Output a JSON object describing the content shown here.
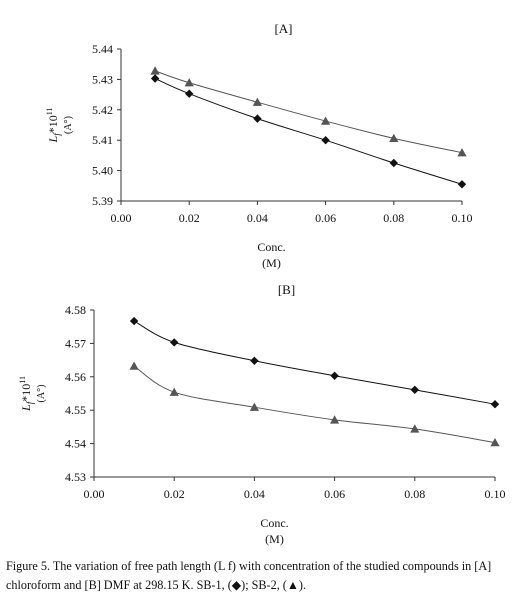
{
  "chart_data": [
    {
      "type": "line",
      "title": "[A]",
      "xlabel_line1": "Conc.",
      "xlabel_line2": "(M)",
      "ylabel_main": "L",
      "ylabel_sub": "f",
      "ylabel_rest": "*10",
      "ylabel_exp": "11",
      "ylabel_unit": "(A°)",
      "xlim": [
        0,
        0.1
      ],
      "ylim": [
        5.39,
        5.44
      ],
      "x_ticks": [
        0,
        0.02,
        0.04,
        0.06,
        0.08,
        0.1
      ],
      "x_tick_labels": [
        "0.00",
        "0.02",
        "0.04",
        "0.06",
        "0.08",
        "0.10"
      ],
      "y_ticks": [
        5.39,
        5.4,
        5.41,
        5.42,
        5.43,
        5.44
      ],
      "y_tick_labels": [
        "5.39",
        "5.40",
        "5.41",
        "5.42",
        "5.43",
        "5.44"
      ],
      "grid": false,
      "series": [
        {
          "marker": "diamond",
          "color": "#111111",
          "x": [
            0.01,
            0.02,
            0.04,
            0.06,
            0.08,
            0.1
          ],
          "y": [
            5.4303,
            5.4253,
            5.4171,
            5.41,
            5.4025,
            5.3955
          ]
        },
        {
          "marker": "triangle",
          "color": "#555555",
          "x": [
            0.01,
            0.02,
            0.04,
            0.06,
            0.08,
            0.1
          ],
          "y": [
            5.4328,
            5.4289,
            5.4225,
            5.4163,
            5.4106,
            5.4059
          ]
        }
      ]
    },
    {
      "type": "line",
      "title": "[B]",
      "xlabel_line1": "Conc.",
      "xlabel_line2": "(M)",
      "ylabel_main": "L",
      "ylabel_sub": "f",
      "ylabel_rest": "*10",
      "ylabel_exp": "11",
      "ylabel_unit": "(A°)",
      "xlim": [
        0,
        0.1
      ],
      "ylim": [
        4.53,
        4.58
      ],
      "x_ticks": [
        0,
        0.02,
        0.04,
        0.06,
        0.08,
        0.1
      ],
      "x_tick_labels": [
        "0.00",
        "0.02",
        "0.04",
        "0.06",
        "0.08",
        "0.10"
      ],
      "y_ticks": [
        4.53,
        4.54,
        4.55,
        4.56,
        4.57,
        4.58
      ],
      "y_tick_labels": [
        "4.53",
        "4.54",
        "4.55",
        "4.56",
        "4.57",
        "4.58"
      ],
      "grid": false,
      "series": [
        {
          "marker": "diamond",
          "color": "#111111",
          "x": [
            0.01,
            0.02,
            0.04,
            0.06,
            0.08,
            0.1
          ],
          "y": [
            4.5767,
            4.5703,
            4.5648,
            4.5603,
            4.5561,
            4.5518
          ]
        },
        {
          "marker": "triangle",
          "color": "#555555",
          "x": [
            0.01,
            0.02,
            0.04,
            0.06,
            0.08,
            0.1
          ],
          "y": [
            4.5632,
            4.5554,
            4.5509,
            4.5471,
            4.5444,
            4.5403
          ]
        }
      ]
    }
  ],
  "caption": {
    "line1": "Figure 5. The variation of free path length (L f) with concentration of the studied compounds in [A]",
    "line2": "chloroform and [B] DMF at 298.15 K. SB-1, (◆); SB-2, (▲)."
  }
}
